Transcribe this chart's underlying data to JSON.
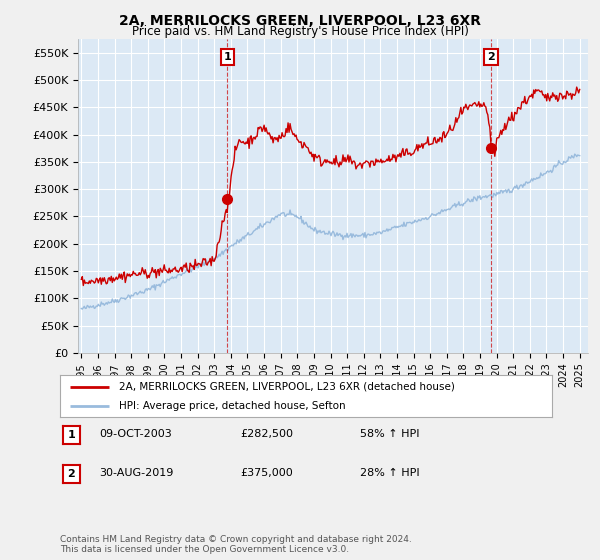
{
  "title": "2A, MERRILOCKS GREEN, LIVERPOOL, L23 6XR",
  "subtitle": "Price paid vs. HM Land Registry's House Price Index (HPI)",
  "ylim": [
    0,
    575000
  ],
  "yticks": [
    0,
    50000,
    100000,
    150000,
    200000,
    250000,
    300000,
    350000,
    400000,
    450000,
    500000,
    550000
  ],
  "ytick_labels": [
    "£0",
    "£50K",
    "£100K",
    "£150K",
    "£200K",
    "£250K",
    "£300K",
    "£350K",
    "£400K",
    "£450K",
    "£500K",
    "£550K"
  ],
  "xlim_start": 1994.8,
  "xlim_end": 2025.5,
  "xticks": [
    1995,
    1996,
    1997,
    1998,
    1999,
    2000,
    2001,
    2002,
    2003,
    2004,
    2005,
    2006,
    2007,
    2008,
    2009,
    2010,
    2011,
    2012,
    2013,
    2014,
    2015,
    2016,
    2017,
    2018,
    2019,
    2020,
    2021,
    2022,
    2023,
    2024,
    2025
  ],
  "property_color": "#cc0000",
  "hpi_color": "#99bbdd",
  "marker1_date": 2003.78,
  "marker1_value": 282500,
  "marker2_date": 2019.67,
  "marker2_value": 375000,
  "legend_label1": "2A, MERRILOCKS GREEN, LIVERPOOL, L23 6XR (detached house)",
  "legend_label2": "HPI: Average price, detached house, Sefton",
  "annot1_label": "1",
  "annot2_label": "2",
  "table_row1": [
    "1",
    "09-OCT-2003",
    "£282,500",
    "58% ↑ HPI"
  ],
  "table_row2": [
    "2",
    "30-AUG-2019",
    "£375,000",
    "28% ↑ HPI"
  ],
  "footer": "Contains HM Land Registry data © Crown copyright and database right 2024.\nThis data is licensed under the Open Government Licence v3.0.",
  "bg_color": "#f0f0f0",
  "plot_bg": "#dce9f5",
  "grid_color": "#ffffff"
}
